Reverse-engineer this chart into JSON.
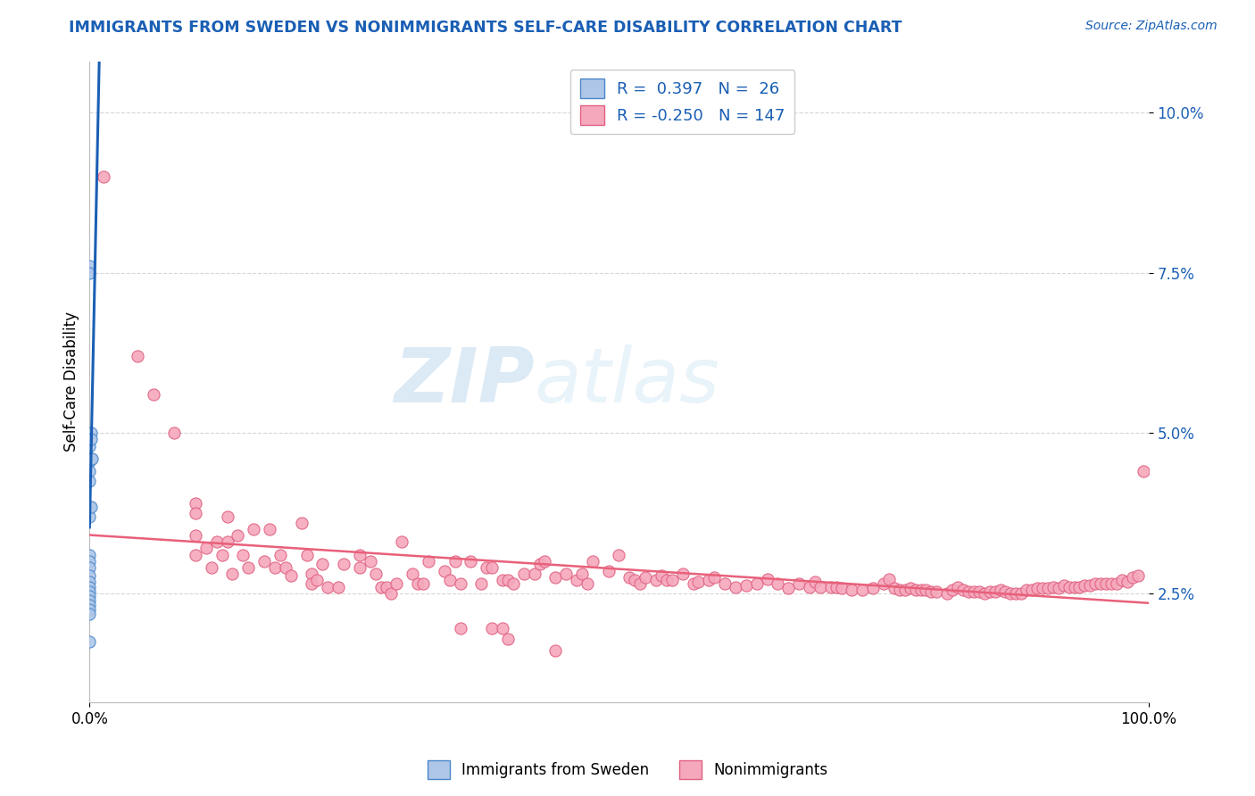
{
  "title": "IMMIGRANTS FROM SWEDEN VS NONIMMIGRANTS SELF-CARE DISABILITY CORRELATION CHART",
  "source": "Source: ZipAtlas.com",
  "ylabel": "Self-Care Disability",
  "ytick_labels": [
    "2.5%",
    "5.0%",
    "7.5%",
    "10.0%"
  ],
  "ytick_values": [
    0.025,
    0.05,
    0.075,
    0.1
  ],
  "xlim": [
    0.0,
    1.0
  ],
  "ylim": [
    0.008,
    0.108
  ],
  "legend_blue_label": "Immigrants from Sweden",
  "legend_pink_label": "Nonimmigrants",
  "blue_color": "#aec6e8",
  "blue_edge_color": "#4a86c8",
  "pink_color": "#f5a8bc",
  "pink_edge_color": "#e06080",
  "blue_line_color": "#1a5fb4",
  "blue_dash_color": "#90b8d8",
  "pink_line_color": "#e8607a",
  "background_color": "#ffffff",
  "grid_color": "#cccccc",
  "title_color": "#1a5fb4",
  "source_color": "#1a5fb4",
  "blue_scatter": [
    [
      0.0,
      0.076
    ],
    [
      0.0,
      0.075
    ],
    [
      0.0,
      0.048
    ],
    [
      0.0,
      0.0455
    ],
    [
      0.0,
      0.044
    ],
    [
      0.0,
      0.0425
    ],
    [
      0.0,
      0.0385
    ],
    [
      0.0,
      0.037
    ],
    [
      0.0,
      0.031
    ],
    [
      0.0,
      0.03
    ],
    [
      0.0,
      0.029
    ],
    [
      0.0,
      0.0278
    ],
    [
      0.0,
      0.0268
    ],
    [
      0.0,
      0.026
    ],
    [
      0.0,
      0.0252
    ],
    [
      0.0,
      0.0245
    ],
    [
      0.0,
      0.0238
    ],
    [
      0.0,
      0.0232
    ],
    [
      0.0,
      0.0225
    ],
    [
      0.0,
      0.0218
    ],
    [
      0.0,
      0.0175
    ],
    [
      0.001,
      0.05
    ],
    [
      0.001,
      0.049
    ],
    [
      0.001,
      0.046
    ],
    [
      0.001,
      0.0385
    ],
    [
      0.002,
      0.046
    ]
  ],
  "pink_scatter": [
    [
      0.013,
      0.09
    ],
    [
      0.045,
      0.062
    ],
    [
      0.06,
      0.056
    ],
    [
      0.08,
      0.05
    ],
    [
      0.1,
      0.039
    ],
    [
      0.1,
      0.0375
    ],
    [
      0.1,
      0.034
    ],
    [
      0.1,
      0.031
    ],
    [
      0.11,
      0.032
    ],
    [
      0.115,
      0.029
    ],
    [
      0.12,
      0.033
    ],
    [
      0.125,
      0.031
    ],
    [
      0.13,
      0.037
    ],
    [
      0.13,
      0.033
    ],
    [
      0.135,
      0.028
    ],
    [
      0.14,
      0.034
    ],
    [
      0.145,
      0.031
    ],
    [
      0.15,
      0.029
    ],
    [
      0.155,
      0.035
    ],
    [
      0.165,
      0.03
    ],
    [
      0.17,
      0.035
    ],
    [
      0.175,
      0.029
    ],
    [
      0.18,
      0.031
    ],
    [
      0.185,
      0.029
    ],
    [
      0.19,
      0.0278
    ],
    [
      0.2,
      0.036
    ],
    [
      0.205,
      0.031
    ],
    [
      0.21,
      0.028
    ],
    [
      0.21,
      0.0265
    ],
    [
      0.215,
      0.027
    ],
    [
      0.22,
      0.0295
    ],
    [
      0.225,
      0.026
    ],
    [
      0.235,
      0.026
    ],
    [
      0.24,
      0.0295
    ],
    [
      0.255,
      0.031
    ],
    [
      0.255,
      0.029
    ],
    [
      0.265,
      0.03
    ],
    [
      0.27,
      0.028
    ],
    [
      0.275,
      0.026
    ],
    [
      0.28,
      0.026
    ],
    [
      0.285,
      0.025
    ],
    [
      0.29,
      0.0265
    ],
    [
      0.295,
      0.033
    ],
    [
      0.305,
      0.028
    ],
    [
      0.31,
      0.0265
    ],
    [
      0.315,
      0.0265
    ],
    [
      0.32,
      0.03
    ],
    [
      0.335,
      0.0285
    ],
    [
      0.34,
      0.027
    ],
    [
      0.345,
      0.03
    ],
    [
      0.35,
      0.0265
    ],
    [
      0.36,
      0.03
    ],
    [
      0.37,
      0.0265
    ],
    [
      0.375,
      0.029
    ],
    [
      0.38,
      0.029
    ],
    [
      0.39,
      0.027
    ],
    [
      0.395,
      0.027
    ],
    [
      0.4,
      0.0265
    ],
    [
      0.41,
      0.028
    ],
    [
      0.42,
      0.028
    ],
    [
      0.425,
      0.0295
    ],
    [
      0.43,
      0.03
    ],
    [
      0.44,
      0.0275
    ],
    [
      0.45,
      0.028
    ],
    [
      0.46,
      0.027
    ],
    [
      0.465,
      0.028
    ],
    [
      0.47,
      0.0265
    ],
    [
      0.475,
      0.03
    ],
    [
      0.49,
      0.0285
    ],
    [
      0.5,
      0.031
    ],
    [
      0.51,
      0.0275
    ],
    [
      0.515,
      0.027
    ],
    [
      0.52,
      0.0265
    ],
    [
      0.525,
      0.0275
    ],
    [
      0.535,
      0.027
    ],
    [
      0.54,
      0.0278
    ],
    [
      0.545,
      0.027
    ],
    [
      0.55,
      0.027
    ],
    [
      0.56,
      0.028
    ],
    [
      0.57,
      0.0265
    ],
    [
      0.575,
      0.0268
    ],
    [
      0.585,
      0.027
    ],
    [
      0.59,
      0.0275
    ],
    [
      0.6,
      0.0265
    ],
    [
      0.61,
      0.026
    ],
    [
      0.62,
      0.0262
    ],
    [
      0.63,
      0.0265
    ],
    [
      0.64,
      0.0272
    ],
    [
      0.65,
      0.0265
    ],
    [
      0.66,
      0.0258
    ],
    [
      0.67,
      0.0265
    ],
    [
      0.68,
      0.026
    ],
    [
      0.685,
      0.0268
    ],
    [
      0.69,
      0.026
    ],
    [
      0.7,
      0.026
    ],
    [
      0.705,
      0.026
    ],
    [
      0.71,
      0.0258
    ],
    [
      0.72,
      0.0255
    ],
    [
      0.73,
      0.0255
    ],
    [
      0.74,
      0.0258
    ],
    [
      0.75,
      0.0265
    ],
    [
      0.755,
      0.0272
    ],
    [
      0.76,
      0.0258
    ],
    [
      0.765,
      0.0255
    ],
    [
      0.77,
      0.0255
    ],
    [
      0.775,
      0.0258
    ],
    [
      0.78,
      0.0255
    ],
    [
      0.785,
      0.0255
    ],
    [
      0.79,
      0.0255
    ],
    [
      0.795,
      0.0253
    ],
    [
      0.8,
      0.0253
    ],
    [
      0.81,
      0.025
    ],
    [
      0.815,
      0.0255
    ],
    [
      0.82,
      0.026
    ],
    [
      0.825,
      0.0255
    ],
    [
      0.83,
      0.0252
    ],
    [
      0.835,
      0.0252
    ],
    [
      0.84,
      0.0252
    ],
    [
      0.845,
      0.025
    ],
    [
      0.85,
      0.0252
    ],
    [
      0.855,
      0.0252
    ],
    [
      0.86,
      0.0255
    ],
    [
      0.865,
      0.0252
    ],
    [
      0.87,
      0.025
    ],
    [
      0.875,
      0.025
    ],
    [
      0.88,
      0.025
    ],
    [
      0.885,
      0.0255
    ],
    [
      0.89,
      0.0255
    ],
    [
      0.895,
      0.0258
    ],
    [
      0.9,
      0.0258
    ],
    [
      0.905,
      0.0258
    ],
    [
      0.91,
      0.026
    ],
    [
      0.915,
      0.0258
    ],
    [
      0.92,
      0.0262
    ],
    [
      0.925,
      0.026
    ],
    [
      0.93,
      0.026
    ],
    [
      0.935,
      0.026
    ],
    [
      0.94,
      0.0262
    ],
    [
      0.945,
      0.0262
    ],
    [
      0.95,
      0.0265
    ],
    [
      0.955,
      0.0265
    ],
    [
      0.96,
      0.0265
    ],
    [
      0.965,
      0.0265
    ],
    [
      0.97,
      0.0265
    ],
    [
      0.975,
      0.027
    ],
    [
      0.98,
      0.0268
    ],
    [
      0.985,
      0.0275
    ],
    [
      0.99,
      0.0278
    ],
    [
      0.995,
      0.044
    ],
    [
      0.35,
      0.0195
    ],
    [
      0.38,
      0.0195
    ],
    [
      0.39,
      0.0195
    ],
    [
      0.395,
      0.0178
    ],
    [
      0.44,
      0.016
    ]
  ]
}
